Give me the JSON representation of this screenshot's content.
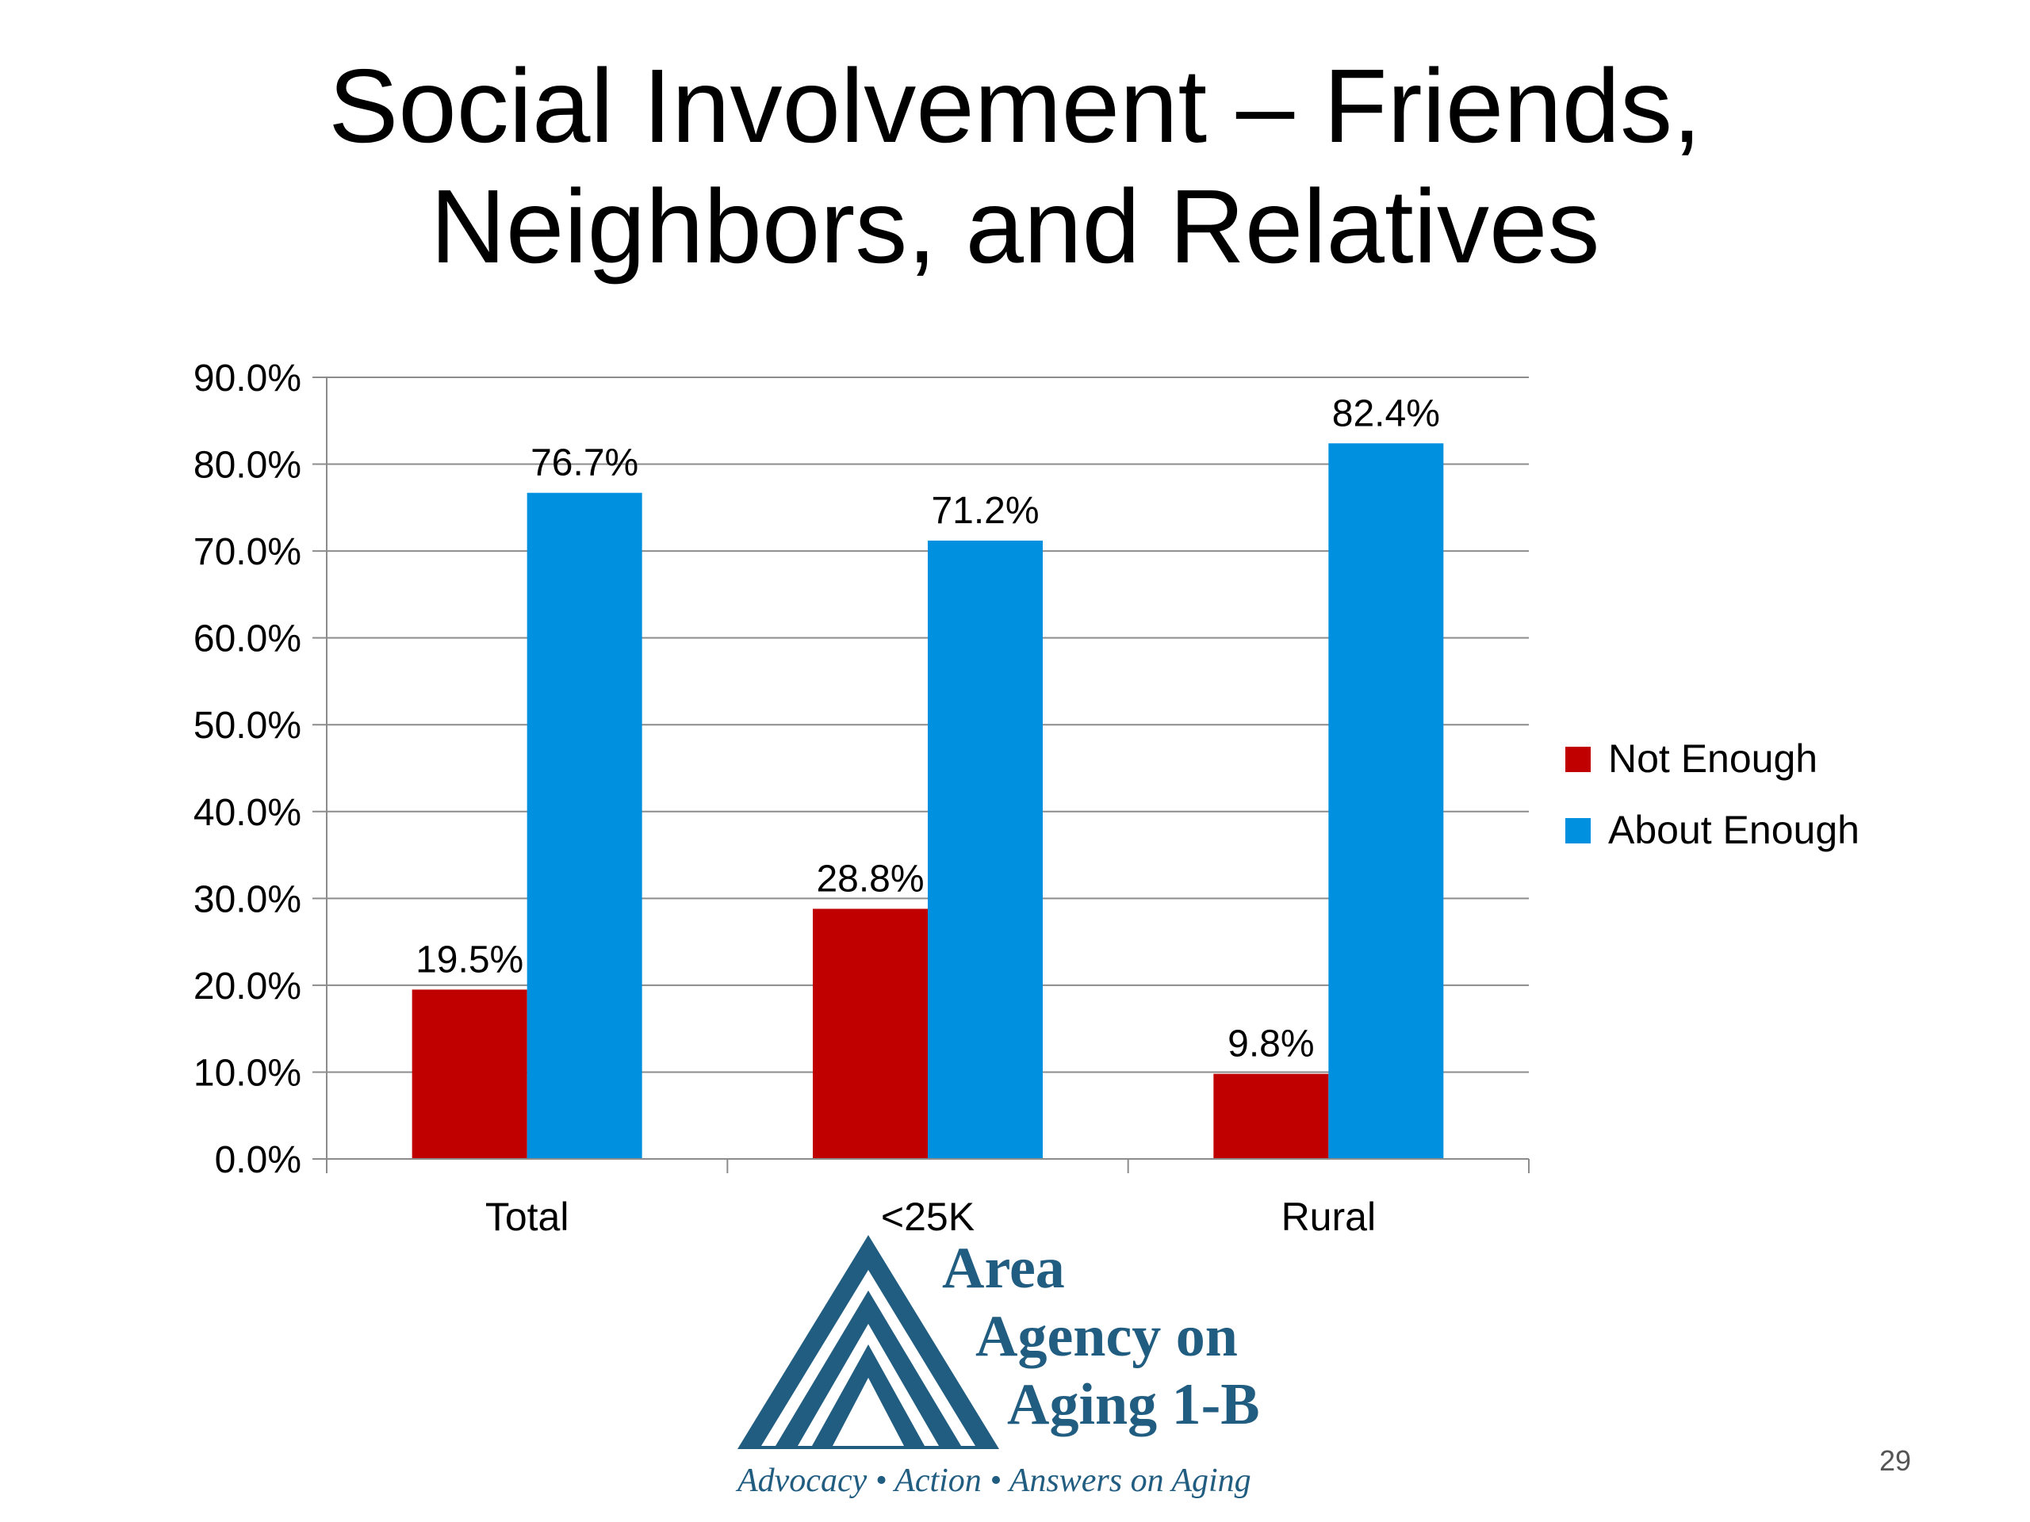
{
  "slide": {
    "title_line1": "Social Involvement – Friends,",
    "title_line2": "Neighbors, and Relatives",
    "page_number": "29"
  },
  "logo": {
    "line1": "Area",
    "line2": "Agency on",
    "line3": "Aging 1-B",
    "tagline": "Advocacy • Action • Answers on Aging"
  },
  "colors": {
    "not_enough": "#c00000",
    "about_enough": "#0090e0",
    "logo": "#215d81"
  },
  "chart_data": {
    "type": "bar",
    "categories": [
      "Total",
      "<25K",
      "Rural"
    ],
    "series": [
      {
        "name": "Not Enough",
        "values": [
          19.5,
          28.8,
          9.8
        ],
        "labels": [
          "19.5%",
          "28.8%",
          "9.8%"
        ],
        "color": "#c00000"
      },
      {
        "name": "About Enough",
        "values": [
          76.7,
          71.2,
          82.4
        ],
        "labels": [
          "76.7%",
          "71.2%",
          "82.4%"
        ],
        "color": "#0090e0"
      }
    ],
    "ylim": [
      0,
      90
    ],
    "yticks": [
      "0.0%",
      "10.0%",
      "20.0%",
      "30.0%",
      "40.0%",
      "50.0%",
      "60.0%",
      "70.0%",
      "80.0%",
      "90.0%"
    ],
    "grid": true,
    "legend": "right"
  }
}
